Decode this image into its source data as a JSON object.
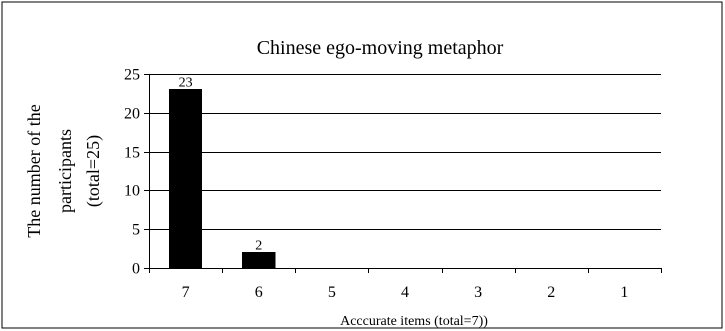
{
  "chart_data": {
    "type": "bar",
    "title": "Chinese ego-moving metaphor",
    "xlabel": "Acccurate items (total=7))",
    "ylabel_lines": [
      "The number of the",
      "participants",
      "(total=25)"
    ],
    "categories": [
      "7",
      "6",
      "5",
      "4",
      "3",
      "2",
      "1"
    ],
    "values": [
      23,
      2,
      0,
      0,
      0,
      0,
      0
    ],
    "data_labels": [
      "23",
      "2",
      "",
      "",
      "",
      "",
      ""
    ],
    "ylim": [
      0,
      25
    ],
    "yticks": [
      0,
      5,
      10,
      15,
      20,
      25
    ],
    "grid": true,
    "legend": "none",
    "bar_color": "#000000"
  }
}
